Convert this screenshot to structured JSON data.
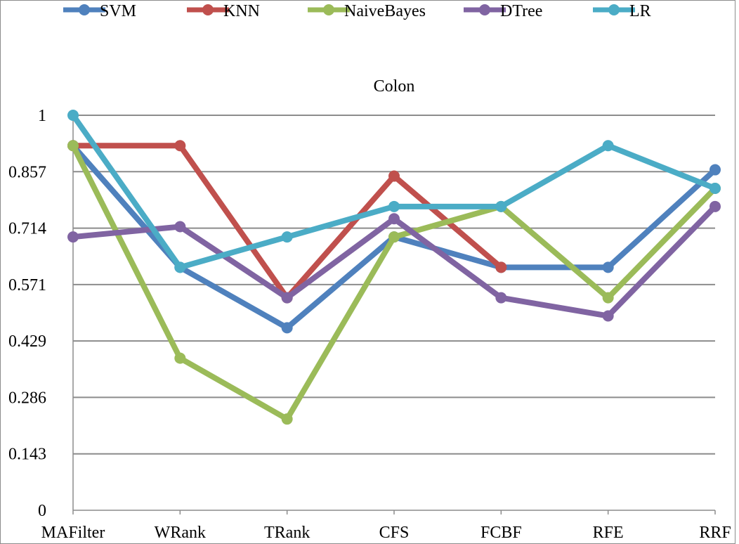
{
  "chart_data": {
    "type": "line",
    "title": "Colon",
    "xlabel": "",
    "ylabel": "",
    "categories": [
      "MAFilter",
      "WRank",
      "TRank",
      "CFS",
      "FCBF",
      "RFE",
      "RRF"
    ],
    "ylim": [
      0,
      1
    ],
    "yticks": [
      "0",
      "0.143",
      "0.286",
      "0.429",
      "0.571",
      "0.714",
      "0.857",
      "1"
    ],
    "grid": "horizontal",
    "legend_position": "top",
    "series": [
      {
        "name": "SVM",
        "color": "#4F81BD",
        "values": [
          0.923,
          0.615,
          0.462,
          0.692,
          0.615,
          0.615,
          0.862
        ]
      },
      {
        "name": "KNN",
        "color": "#C0504D",
        "values": [
          0.923,
          0.923,
          0.538,
          0.846,
          0.615,
          null,
          null
        ]
      },
      {
        "name": "NaiveBayes",
        "color": "#9BBB59",
        "values": [
          0.923,
          0.385,
          0.231,
          0.692,
          0.769,
          0.538,
          0.815
        ]
      },
      {
        "name": "DTree",
        "color": "#8064A2",
        "values": [
          0.692,
          0.718,
          0.538,
          0.738,
          0.538,
          0.492,
          0.769
        ]
      },
      {
        "name": "LR",
        "color": "#4BACC6",
        "values": [
          1.0,
          0.615,
          0.692,
          0.769,
          0.769,
          0.923,
          0.815
        ]
      }
    ]
  }
}
